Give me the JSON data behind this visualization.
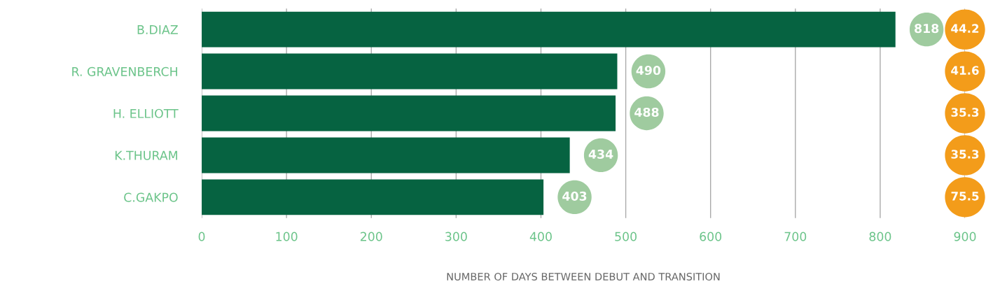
{
  "chart_data": {
    "type": "bar",
    "orientation": "horizontal",
    "xlabel": "NUMBER OF DAYS BETWEEN DEBUT AND TRANSITION",
    "categories": [
      "B.DIAZ",
      "R. GRAVENBERCH",
      "H. ELLIOTT",
      "K.THURAM",
      "C.GAKPO"
    ],
    "series": [
      {
        "color": "#066341",
        "values": [
          818,
          490,
          488,
          434,
          403
        ]
      }
    ],
    "data_labels": true,
    "xlim": [
      0,
      900
    ],
    "xticks": [
      0,
      100,
      200,
      300,
      400,
      500,
      600,
      700,
      800,
      900
    ],
    "grid": "x",
    "annotations": [
      "44.2",
      "41.6",
      "35.3",
      "35.3",
      "75.5"
    ]
  }
}
